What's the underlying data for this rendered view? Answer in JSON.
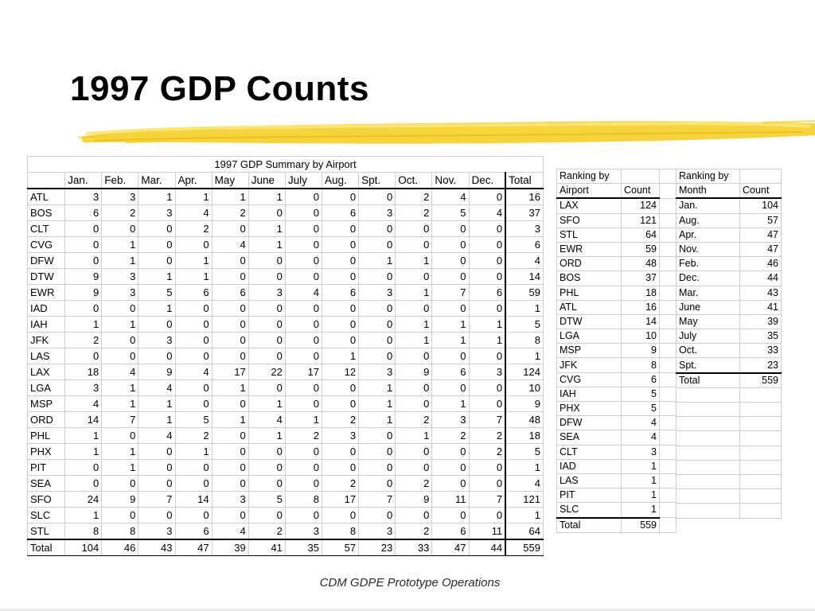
{
  "slide": {
    "title": "1997 GDP Counts",
    "footer": "CDM GDPE Prototype Operations"
  },
  "summary": {
    "caption": "1997 GDP Summary by Airport",
    "columns": [
      "Jan.",
      "Feb.",
      "Mar.",
      "Apr.",
      "May",
      "June",
      "July",
      "Aug.",
      "Spt.",
      "Oct.",
      "Nov.",
      "Dec.",
      "Total"
    ],
    "rows": [
      {
        "airport": "ATL",
        "values": [
          "3",
          "3",
          "1",
          "1",
          "1",
          "1",
          "0",
          "0",
          "0",
          "2",
          "4",
          "0",
          "16"
        ]
      },
      {
        "airport": "BOS",
        "values": [
          "6",
          "2",
          "3",
          "4",
          "2",
          "0",
          "0",
          "6",
          "3",
          "2",
          "5",
          "4",
          "37"
        ]
      },
      {
        "airport": "CLT",
        "values": [
          "0",
          "0",
          "0",
          "2",
          "0",
          "1",
          "0",
          "0",
          "0",
          "0",
          "0",
          "0",
          "3"
        ]
      },
      {
        "airport": "CVG",
        "values": [
          "0",
          "1",
          "0",
          "0",
          "4",
          "1",
          "0",
          "0",
          "0",
          "0",
          "0",
          "0",
          "6"
        ]
      },
      {
        "airport": "DFW",
        "values": [
          "0",
          "1",
          "0",
          "1",
          "0",
          "0",
          "0",
          "0",
          "1",
          "1",
          "0",
          "0",
          "4"
        ]
      },
      {
        "airport": "DTW",
        "values": [
          "9",
          "3",
          "1",
          "1",
          "0",
          "0",
          "0",
          "0",
          "0",
          "0",
          "0",
          "0",
          "14"
        ]
      },
      {
        "airport": "EWR",
        "values": [
          "9",
          "3",
          "5",
          "6",
          "6",
          "3",
          "4",
          "6",
          "3",
          "1",
          "7",
          "6",
          "59"
        ]
      },
      {
        "airport": "IAD",
        "values": [
          "0",
          "0",
          "1",
          "0",
          "0",
          "0",
          "0",
          "0",
          "0",
          "0",
          "0",
          "0",
          "1"
        ]
      },
      {
        "airport": "IAH",
        "values": [
          "1",
          "1",
          "0",
          "0",
          "0",
          "0",
          "0",
          "0",
          "0",
          "1",
          "1",
          "1",
          "5"
        ]
      },
      {
        "airport": "JFK",
        "values": [
          "2",
          "0",
          "3",
          "0",
          "0",
          "0",
          "0",
          "0",
          "0",
          "1",
          "1",
          "1",
          "8"
        ]
      },
      {
        "airport": "LAS",
        "values": [
          "0",
          "0",
          "0",
          "0",
          "0",
          "0",
          "0",
          "1",
          "0",
          "0",
          "0",
          "0",
          "1"
        ]
      },
      {
        "airport": "LAX",
        "values": [
          "18",
          "4",
          "9",
          "4",
          "17",
          "22",
          "17",
          "12",
          "3",
          "9",
          "6",
          "3",
          "124"
        ]
      },
      {
        "airport": "LGA",
        "values": [
          "3",
          "1",
          "4",
          "0",
          "1",
          "0",
          "0",
          "0",
          "1",
          "0",
          "0",
          "0",
          "10"
        ]
      },
      {
        "airport": "MSP",
        "values": [
          "4",
          "1",
          "1",
          "0",
          "0",
          "1",
          "0",
          "0",
          "1",
          "0",
          "1",
          "0",
          "9"
        ]
      },
      {
        "airport": "ORD",
        "values": [
          "14",
          "7",
          "1",
          "5",
          "1",
          "4",
          "1",
          "2",
          "1",
          "2",
          "3",
          "7",
          "48"
        ]
      },
      {
        "airport": "PHL",
        "values": [
          "1",
          "0",
          "4",
          "2",
          "0",
          "1",
          "2",
          "3",
          "0",
          "1",
          "2",
          "2",
          "18"
        ]
      },
      {
        "airport": "PHX",
        "values": [
          "1",
          "1",
          "0",
          "1",
          "0",
          "0",
          "0",
          "0",
          "0",
          "0",
          "0",
          "2",
          "5"
        ]
      },
      {
        "airport": "PIT",
        "values": [
          "0",
          "1",
          "0",
          "0",
          "0",
          "0",
          "0",
          "0",
          "0",
          "0",
          "0",
          "0",
          "1"
        ]
      },
      {
        "airport": "SEA",
        "values": [
          "0",
          "0",
          "0",
          "0",
          "0",
          "0",
          "0",
          "2",
          "0",
          "2",
          "0",
          "0",
          "4"
        ]
      },
      {
        "airport": "SFO",
        "values": [
          "24",
          "9",
          "7",
          "14",
          "3",
          "5",
          "8",
          "17",
          "7",
          "9",
          "11",
          "7",
          "121"
        ]
      },
      {
        "airport": "SLC",
        "values": [
          "1",
          "0",
          "0",
          "0",
          "0",
          "0",
          "0",
          "0",
          "0",
          "0",
          "0",
          "0",
          "1"
        ]
      },
      {
        "airport": "STL",
        "values": [
          "8",
          "8",
          "3",
          "6",
          "4",
          "2",
          "3",
          "8",
          "3",
          "2",
          "6",
          "11",
          "64"
        ]
      }
    ],
    "total": {
      "label": "Total",
      "values": [
        "104",
        "46",
        "43",
        "47",
        "39",
        "41",
        "35",
        "57",
        "23",
        "33",
        "47",
        "44",
        "559"
      ]
    }
  },
  "airport_ranking": {
    "header_line1": "Ranking by",
    "header_line2": "Airport",
    "count_header": "Count",
    "rows": [
      {
        "airport": "LAX",
        "count": "124"
      },
      {
        "airport": "SFO",
        "count": "121"
      },
      {
        "airport": "STL",
        "count": "64"
      },
      {
        "airport": "EWR",
        "count": "59"
      },
      {
        "airport": "ORD",
        "count": "48"
      },
      {
        "airport": "BOS",
        "count": "37"
      },
      {
        "airport": "PHL",
        "count": "18"
      },
      {
        "airport": "ATL",
        "count": "16"
      },
      {
        "airport": "DTW",
        "count": "14"
      },
      {
        "airport": "LGA",
        "count": "10"
      },
      {
        "airport": "MSP",
        "count": "9"
      },
      {
        "airport": "JFK",
        "count": "8"
      },
      {
        "airport": "CVG",
        "count": "6"
      },
      {
        "airport": "IAH",
        "count": "5"
      },
      {
        "airport": "PHX",
        "count": "5"
      },
      {
        "airport": "DFW",
        "count": "4"
      },
      {
        "airport": "SEA",
        "count": "4"
      },
      {
        "airport": "CLT",
        "count": "3"
      },
      {
        "airport": "IAD",
        "count": "1"
      },
      {
        "airport": "LAS",
        "count": "1"
      },
      {
        "airport": "PIT",
        "count": "1"
      },
      {
        "airport": "SLC",
        "count": "1"
      }
    ],
    "total": {
      "label": "Total",
      "count": "559"
    }
  },
  "month_ranking": {
    "header_line1": "Ranking by",
    "header_line2": "Month",
    "count_header": "Count",
    "rows": [
      {
        "month": "Jan.",
        "count": "104"
      },
      {
        "month": "Aug.",
        "count": "57"
      },
      {
        "month": "Apr.",
        "count": "47"
      },
      {
        "month": "Nov.",
        "count": "47"
      },
      {
        "month": "Feb.",
        "count": "46"
      },
      {
        "month": "Dec.",
        "count": "44"
      },
      {
        "month": "Mar.",
        "count": "43"
      },
      {
        "month": "June",
        "count": "41"
      },
      {
        "month": "May",
        "count": "39"
      },
      {
        "month": "July",
        "count": "35"
      },
      {
        "month": "Oct.",
        "count": "33"
      },
      {
        "month": "Spt.",
        "count": "23"
      }
    ],
    "total": {
      "label": "Total",
      "count": "559"
    }
  },
  "colors": {
    "accent_stroke": "#f5cc1e",
    "accent_stroke_light": "#fbe77a",
    "grid_line": "#cfcfcf",
    "footer_text": "#2b2b2b"
  }
}
